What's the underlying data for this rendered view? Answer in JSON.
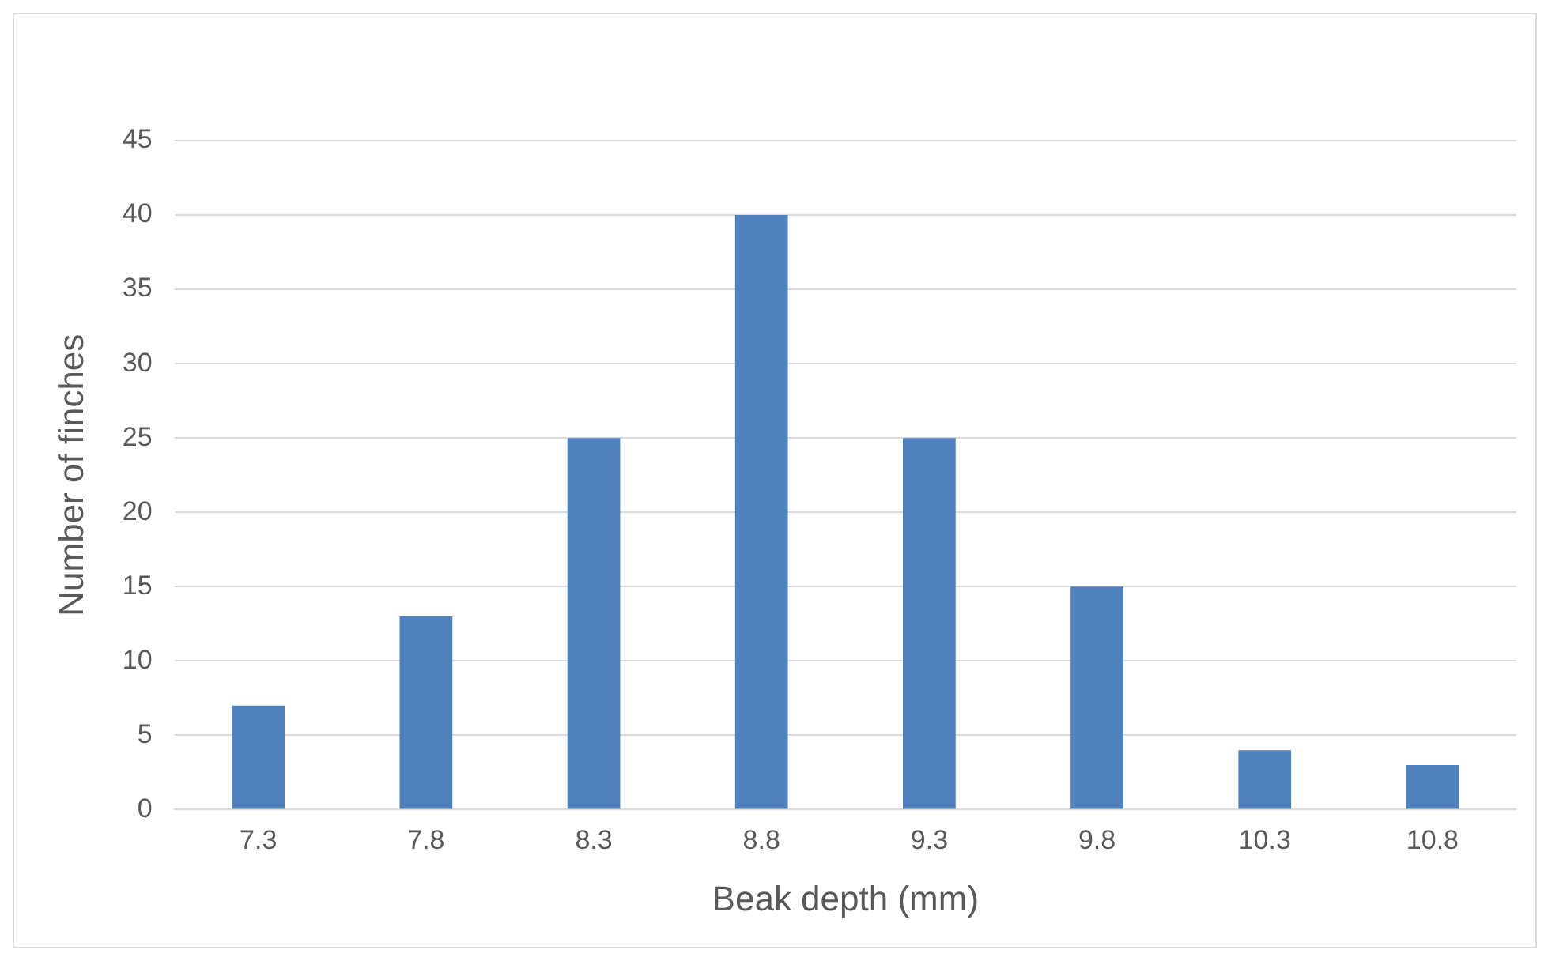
{
  "chart_data": {
    "type": "bar",
    "xlabel": "Beak depth (mm)",
    "ylabel": "Number of finches",
    "categories": [
      "7.3",
      "7.8",
      "8.3",
      "8.8",
      "9.3",
      "9.8",
      "10.3",
      "10.8"
    ],
    "values": [
      7,
      13,
      25,
      40,
      25,
      15,
      4,
      3
    ],
    "color": "#4f81bd",
    "ylim": [
      0,
      45
    ],
    "yticks": [
      0,
      5,
      10,
      15,
      20,
      25,
      30,
      35,
      40,
      45
    ],
    "grid": "y"
  }
}
